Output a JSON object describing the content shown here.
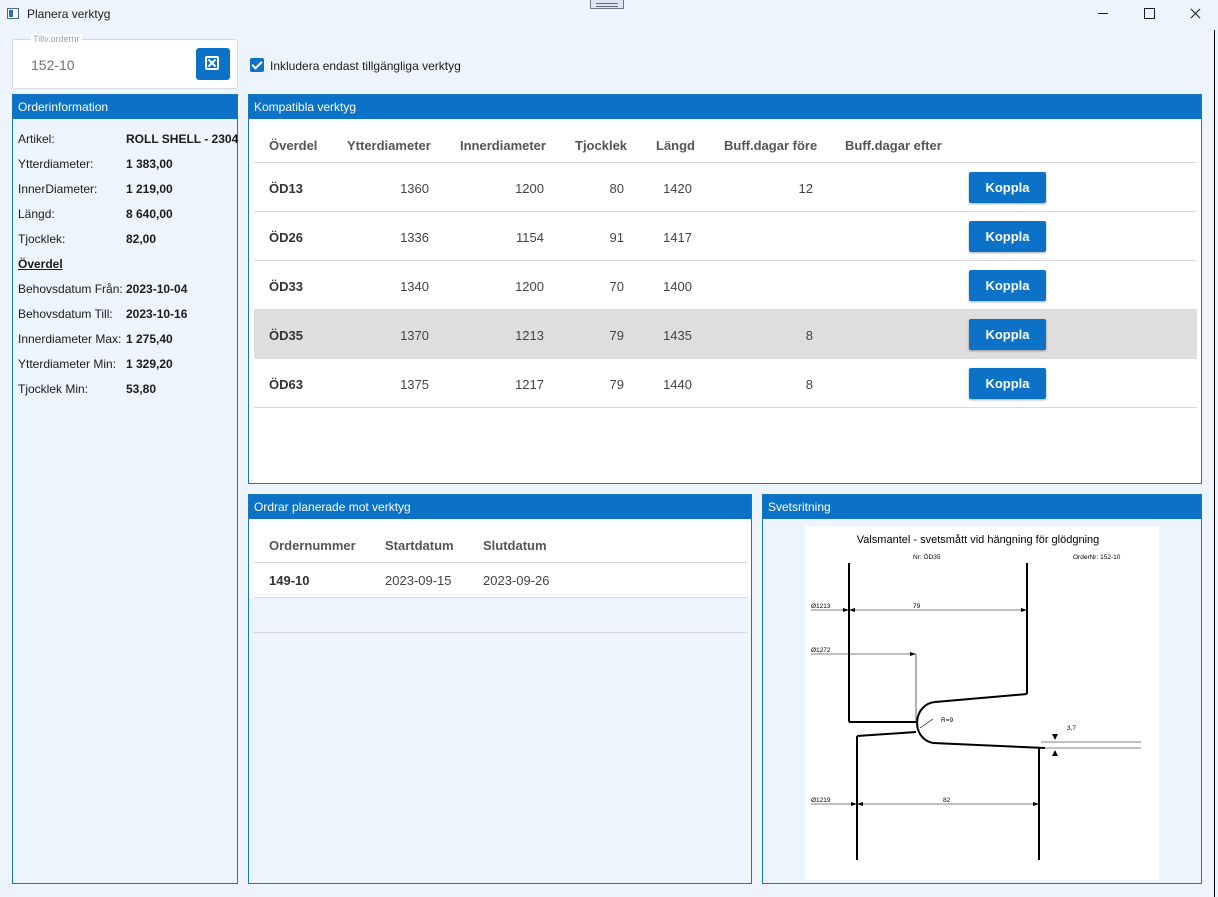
{
  "window": {
    "title": "Planera verktyg"
  },
  "order_field": {
    "label": "Tillv.ordernr",
    "value": "152-10"
  },
  "filter": {
    "checked": true,
    "label": "Inkludera endast tillgängliga verktyg"
  },
  "order_info": {
    "title": "Orderinformation",
    "rows": [
      {
        "label": "Artikel:",
        "value": "ROLL SHELL - 2304"
      },
      {
        "label": "Ytterdiameter:",
        "value": "1 383,00"
      },
      {
        "label": "InnerDiameter:",
        "value": "1 219,00"
      },
      {
        "label": "Längd:",
        "value": "8 640,00"
      },
      {
        "label": "Tjocklek:",
        "value": "82,00"
      }
    ],
    "section": "Överdel",
    "section_rows": [
      {
        "label": "Behovsdatum Från:",
        "value": "2023-10-04"
      },
      {
        "label": "Behovsdatum Till:",
        "value": "2023-10-16"
      },
      {
        "label": "Innerdiameter Max:",
        "value": "1 275,40"
      },
      {
        "label": "Ytterdiameter Min:",
        "value": "1 329,20"
      },
      {
        "label": "Tjocklek Min:",
        "value": "53,80"
      }
    ]
  },
  "tools": {
    "title": "Kompatibla verktyg",
    "columns": [
      "Överdel",
      "Ytterdiameter",
      "Innerdiameter",
      "Tjocklek",
      "Längd",
      "Buff.dagar före",
      "Buff.dagar efter"
    ],
    "action_label": "Koppla",
    "rows": [
      {
        "code": "ÖD13",
        "outer": "1360",
        "inner": "1200",
        "thickness": "80",
        "length": "1420",
        "buff_before": "12",
        "buff_after": "",
        "selected": false
      },
      {
        "code": "ÖD26",
        "outer": "1336",
        "inner": "1154",
        "thickness": "91",
        "length": "1417",
        "buff_before": "",
        "buff_after": "",
        "selected": false
      },
      {
        "code": "ÖD33",
        "outer": "1340",
        "inner": "1200",
        "thickness": "70",
        "length": "1400",
        "buff_before": "",
        "buff_after": "",
        "selected": false
      },
      {
        "code": "ÖD35",
        "outer": "1370",
        "inner": "1213",
        "thickness": "79",
        "length": "1435",
        "buff_before": "8",
        "buff_after": "",
        "selected": true
      },
      {
        "code": "ÖD63",
        "outer": "1375",
        "inner": "1217",
        "thickness": "79",
        "length": "1440",
        "buff_before": "8",
        "buff_after": "",
        "selected": false
      }
    ]
  },
  "planned_orders": {
    "title": "Ordrar planerade mot verktyg",
    "columns": [
      "Ordernummer",
      "Startdatum",
      "Slutdatum"
    ],
    "rows": [
      {
        "order": "149-10",
        "start": "2023-09-15",
        "end": "2023-09-26"
      }
    ]
  },
  "weld_drawing": {
    "title": "Svetsritning",
    "drawing_title": "Valsmantel - svetsmått vid hängning för glödgning",
    "tool_no": "Nr: ÖD35",
    "order_no": "OrderNr: 152-10",
    "dims": {
      "d1213": "Ø1213",
      "d1272": "Ø1272",
      "d1219": "Ø1219",
      "len79": "79",
      "len82": "82",
      "radius": "R=9",
      "gap": "3,7"
    }
  }
}
